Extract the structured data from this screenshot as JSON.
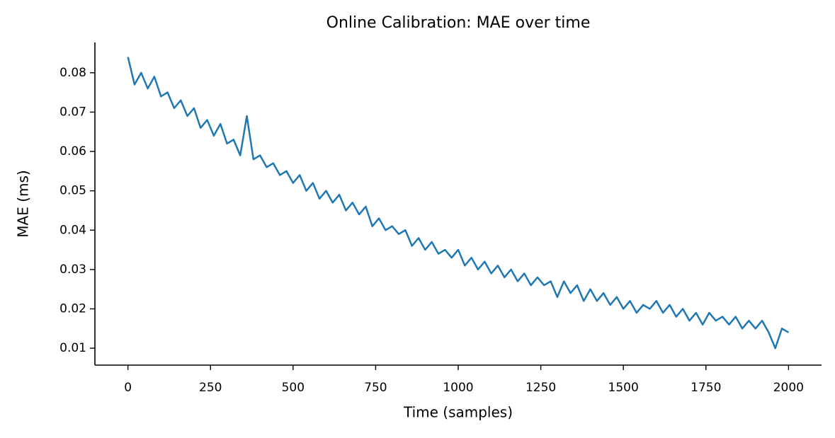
{
  "chart_data": {
    "type": "line",
    "title": "Online Calibration: MAE over time",
    "x_label": "Time (samples)",
    "y_label": "MAE (ms)",
    "x": [
      0,
      20,
      40,
      60,
      80,
      100,
      120,
      140,
      160,
      180,
      200,
      220,
      240,
      260,
      280,
      300,
      320,
      340,
      360,
      380,
      400,
      420,
      440,
      460,
      480,
      500,
      520,
      540,
      560,
      580,
      600,
      620,
      640,
      660,
      680,
      700,
      720,
      740,
      760,
      780,
      800,
      820,
      840,
      860,
      880,
      900,
      920,
      940,
      960,
      980,
      1000,
      1020,
      1040,
      1060,
      1080,
      1100,
      1120,
      1140,
      1160,
      1180,
      1200,
      1220,
      1240,
      1260,
      1280,
      1300,
      1320,
      1340,
      1360,
      1380,
      1400,
      1420,
      1440,
      1460,
      1480,
      1500,
      1520,
      1540,
      1560,
      1580,
      1600,
      1620,
      1640,
      1660,
      1680,
      1700,
      1720,
      1740,
      1760,
      1780,
      1800,
      1820,
      1840,
      1860,
      1880,
      1900,
      1920,
      1940,
      1960,
      1980,
      2000
    ],
    "series": [
      {
        "color": "#1f77b4",
        "values": [
          0.084,
          0.077,
          0.08,
          0.076,
          0.079,
          0.074,
          0.075,
          0.071,
          0.073,
          0.069,
          0.071,
          0.066,
          0.068,
          0.064,
          0.067,
          0.062,
          0.063,
          0.059,
          0.069,
          0.058,
          0.059,
          0.056,
          0.057,
          0.054,
          0.055,
          0.052,
          0.054,
          0.05,
          0.052,
          0.048,
          0.05,
          0.047,
          0.049,
          0.045,
          0.047,
          0.044,
          0.046,
          0.041,
          0.043,
          0.04,
          0.041,
          0.039,
          0.04,
          0.036,
          0.038,
          0.035,
          0.037,
          0.034,
          0.035,
          0.033,
          0.035,
          0.031,
          0.033,
          0.03,
          0.032,
          0.029,
          0.031,
          0.028,
          0.03,
          0.027,
          0.029,
          0.026,
          0.028,
          0.026,
          0.027,
          0.023,
          0.027,
          0.024,
          0.026,
          0.022,
          0.025,
          0.022,
          0.024,
          0.021,
          0.023,
          0.02,
          0.022,
          0.019,
          0.021,
          0.02,
          0.022,
          0.019,
          0.021,
          0.018,
          0.02,
          0.017,
          0.019,
          0.016,
          0.019,
          0.017,
          0.018,
          0.016,
          0.018,
          0.015,
          0.017,
          0.015,
          0.017,
          0.014,
          0.01,
          0.015,
          0.014
        ]
      }
    ],
    "xlim": [
      -100,
      2100
    ],
    "xticks": [
      0,
      250,
      500,
      750,
      1000,
      1250,
      1500,
      1750,
      2000
    ],
    "ylim": [
      0.0057,
      0.0877
    ],
    "yticks": [
      0.01,
      0.02,
      0.03,
      0.04,
      0.05,
      0.06,
      0.07,
      0.08
    ]
  }
}
